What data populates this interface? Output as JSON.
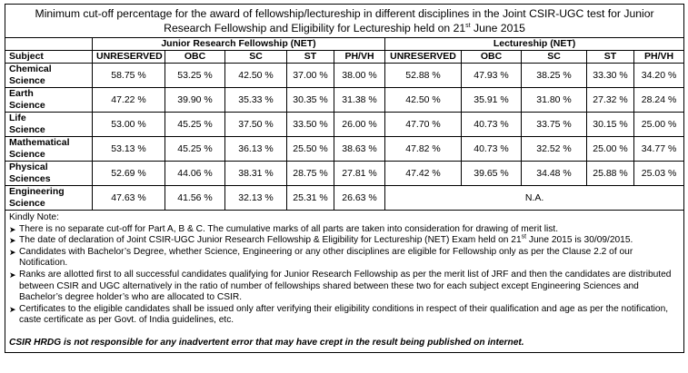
{
  "title": {
    "line1": "Minimum cut-off percentage for the award of fellowship/lectureship in different disciplines in the Joint CSIR-UGC test for  Junior",
    "line2_before": "Research Fellowship  and Eligibility for Lectureship held on 21",
    "line2_sup": "st",
    "line2_after": " June 2015"
  },
  "groups": {
    "jrf": "Junior Research Fellowship (NET)",
    "lect": "Lectureship (NET)"
  },
  "columns": {
    "subject": "Subject",
    "jrf": [
      "UNRESERVED",
      "OBC",
      "SC",
      "ST",
      "PH/VH"
    ],
    "lect": [
      "UNRESERVED",
      "OBC",
      "SC",
      "ST",
      "PH/VH"
    ]
  },
  "rows": [
    {
      "subject": [
        "Chemical",
        "Science"
      ],
      "jrf": [
        "58.75 %",
        "53.25 %",
        "42.50 %",
        "37.00 %",
        "38.00 %"
      ],
      "lect": [
        "52.88 %",
        "47.93 %",
        "38.25 %",
        "33.30 %",
        "34.20 %"
      ]
    },
    {
      "subject": [
        "Earth",
        "Science"
      ],
      "jrf": [
        "47.22 %",
        "39.90 %",
        "35.33 %",
        "30.35 %",
        "31.38 %"
      ],
      "lect": [
        "42.50 %",
        "35.91 %",
        "31.80 %",
        "27.32 %",
        "28.24 %"
      ]
    },
    {
      "subject": [
        "Life",
        "Science"
      ],
      "jrf": [
        "53.00 %",
        "45.25 %",
        "37.50 %",
        "33.50 %",
        "26.00 %"
      ],
      "lect": [
        "47.70 %",
        "40.73 %",
        "33.75 %",
        "30.15 %",
        "25.00 %"
      ]
    },
    {
      "subject": [
        "Mathematical",
        "Science"
      ],
      "jrf": [
        "53.13 %",
        "45.25 %",
        "36.13 %",
        "25.50 %",
        "38.63 %"
      ],
      "lect": [
        "47.82 %",
        "40.73 %",
        "32.52 %",
        "25.00 %",
        "34.77 %"
      ]
    },
    {
      "subject": [
        "Physical",
        "Sciences"
      ],
      "jrf": [
        "52.69 %",
        "44.06 %",
        "38.31 %",
        "28.75 %",
        "27.81 %"
      ],
      "lect": [
        "47.42 %",
        "39.65 %",
        "34.48 %",
        "25.88 %",
        "25.03 %"
      ]
    }
  ],
  "engineering": {
    "subject": [
      "Engineering",
      "Science"
    ],
    "jrf": [
      "47.63 %",
      "41.56 %",
      "32.13 %",
      "25.31 %",
      "26.63 %"
    ],
    "lect_na": "N.A."
  },
  "notes": {
    "heading": "Kindly Note:",
    "items": [
      "There is no separate cut-off for Part A, B & C. The cumulative marks of all parts are taken into consideration for drawing of merit list.",
      "The date of declaration of Joint CSIR-UGC Junior Research Fellowship & Eligibility for Lectureship (NET) Exam held on 21",
      "Candidates with Bachelor’s Degree, whether Science, Engineering or any other disciplines are eligible for Fellowship only as per the Clause 2.2 of our Notification.",
      "Ranks are allotted first to all successful candidates qualifying for Junior Research Fellowship  as per the merit list of JRF and then the candidates are distributed between CSIR and UGC alternatively in the ratio of number of fellowships shared between these two for each subject except Engineering Sciences and Bachelor’s degree holder’s who are allocated to CSIR.",
      "Certificates to the eligible candidates shall be issued only after verifying their eligibility conditions in respect of their qualification and age as per the notification, caste certificate as per Govt. of India guidelines, etc."
    ],
    "item2_sup": "st",
    "item2_after": " June 2015 is 30/09/2015.",
    "disclaimer": "CSIR HRDG is not responsible for any inadvertent error that may have crept in the result being published on internet."
  }
}
